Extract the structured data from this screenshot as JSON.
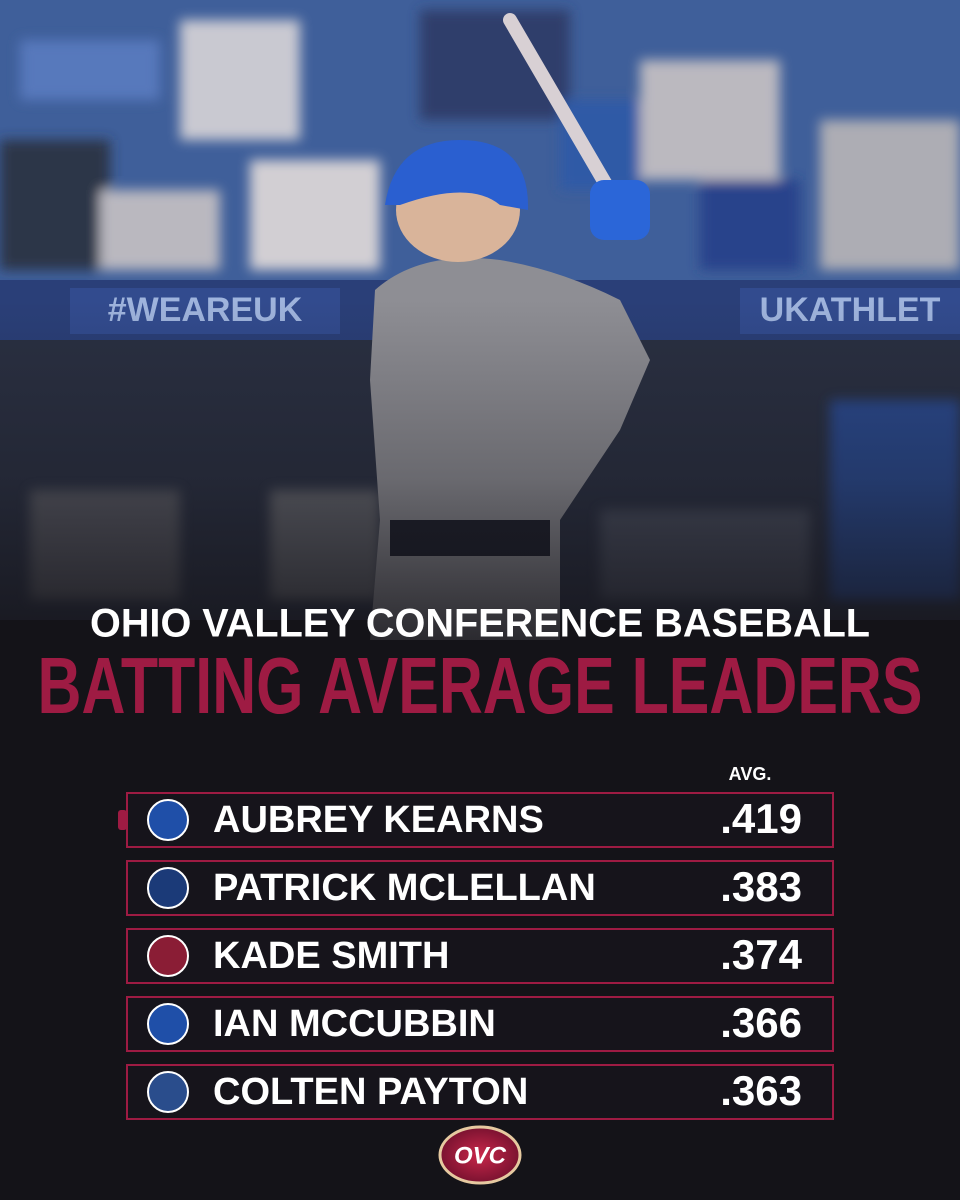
{
  "background": {
    "banner_texts": [
      "#WEAREUK",
      "UKATHLET"
    ]
  },
  "header": {
    "subtitle": "OHIO VALLEY CONFERENCE BASEBALL",
    "title": "BATTING AVERAGE LEADERS"
  },
  "table": {
    "column_header": "AVG.",
    "rows": [
      {
        "name": "AUBREY KEARNS",
        "avg": ".419"
      },
      {
        "name": "PATRICK MCLELLAN",
        "avg": ".383"
      },
      {
        "name": "KADE SMITH",
        "avg": ".374"
      },
      {
        "name": "IAN MCCUBBIN",
        "avg": ".366"
      },
      {
        "name": "COLTEN PAYTON",
        "avg": ".363"
      }
    ]
  },
  "footer": {
    "logo_text": "OVC"
  }
}
